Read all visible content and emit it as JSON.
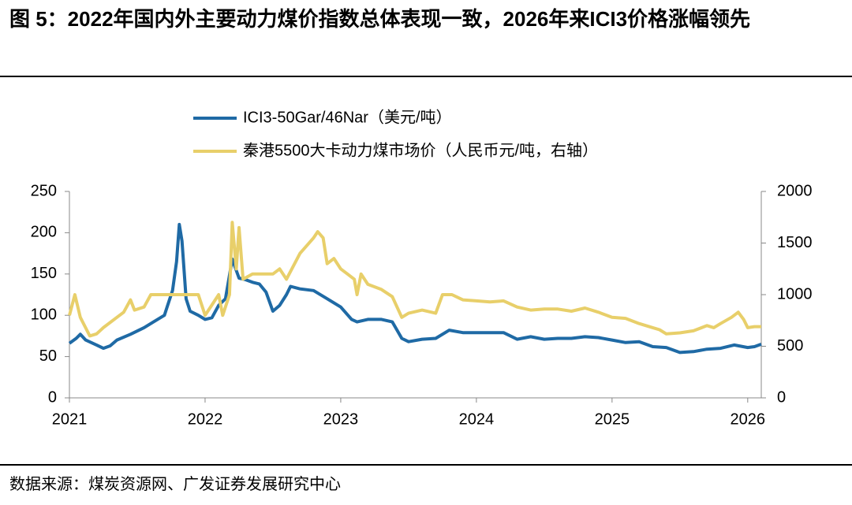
{
  "chart_data": {
    "type": "line",
    "title": "图 5：2022年国内外主要动力煤价指数总体表现一致，2026年来ICI3价格涨幅领先",
    "source": "数据来源：煤炭资源网、广发证券发展研究中心",
    "xlim": [
      2021,
      2026.1
    ],
    "xticks": [
      2021,
      2022,
      2023,
      2024,
      2025,
      2026
    ],
    "ylim": [
      0,
      250
    ],
    "yticks": [
      0,
      50,
      100,
      150,
      200,
      250
    ],
    "y2lim": [
      0,
      2000
    ],
    "y2ticks": [
      0,
      500,
      1000,
      1500,
      2000
    ],
    "series": [
      {
        "name": "ICI3-50Gar/46Nar（美元/吨）",
        "color": "#1f6aa5",
        "x": [
          2021.0,
          2021.05,
          2021.08,
          2021.12,
          2021.2,
          2021.25,
          2021.3,
          2021.35,
          2021.45,
          2021.55,
          2021.62,
          2021.7,
          2021.72,
          2021.76,
          2021.79,
          2021.81,
          2021.83,
          2021.86,
          2021.89,
          2021.95,
          2022.0,
          2022.05,
          2022.1,
          2022.15,
          2022.2,
          2022.25,
          2022.3,
          2022.35,
          2022.4,
          2022.45,
          2022.5,
          2022.55,
          2022.6,
          2022.63,
          2022.7,
          2022.8,
          2022.9,
          2023.0,
          2023.08,
          2023.12,
          2023.2,
          2023.3,
          2023.38,
          2023.45,
          2023.5,
          2023.6,
          2023.7,
          2023.8,
          2023.9,
          2024.0,
          2024.1,
          2024.2,
          2024.3,
          2024.4,
          2024.5,
          2024.6,
          2024.7,
          2024.8,
          2024.9,
          2025.0,
          2025.1,
          2025.2,
          2025.3,
          2025.4,
          2025.5,
          2025.6,
          2025.7,
          2025.8,
          2025.9,
          2026.0,
          2026.05,
          2026.1
        ],
        "values": [
          66,
          72,
          77,
          70,
          64,
          60,
          63,
          70,
          77,
          85,
          92,
          100,
          110,
          130,
          165,
          210,
          190,
          120,
          105,
          100,
          95,
          97,
          112,
          120,
          168,
          145,
          143,
          140,
          138,
          128,
          105,
          112,
          125,
          135,
          132,
          130,
          120,
          110,
          95,
          92,
          95,
          95,
          92,
          72,
          68,
          71,
          72,
          82,
          79,
          79,
          79,
          79,
          71,
          74,
          71,
          72,
          72,
          74,
          73,
          70,
          67,
          68,
          62,
          61,
          55,
          56,
          59,
          60,
          64,
          61,
          62,
          65
        ]
      },
      {
        "name": "秦港5500大卡动力煤市场价（人民币元/吨，右轴）",
        "color": "#e8cf6a",
        "axis": "y2",
        "x": [
          2021.0,
          2021.04,
          2021.08,
          2021.15,
          2021.2,
          2021.25,
          2021.35,
          2021.4,
          2021.45,
          2021.48,
          2021.55,
          2021.6,
          2021.8,
          2021.95,
          2022.0,
          2022.05,
          2022.1,
          2022.13,
          2022.18,
          2022.2,
          2022.23,
          2022.25,
          2022.28,
          2022.35,
          2022.5,
          2022.55,
          2022.6,
          2022.7,
          2022.8,
          2022.83,
          2022.87,
          2022.9,
          2022.95,
          2023.0,
          2023.05,
          2023.1,
          2023.12,
          2023.15,
          2023.2,
          2023.3,
          2023.38,
          2023.45,
          2023.5,
          2023.6,
          2023.7,
          2023.75,
          2023.82,
          2023.9,
          2024.0,
          2024.1,
          2024.2,
          2024.3,
          2024.4,
          2024.5,
          2024.6,
          2024.7,
          2024.8,
          2024.9,
          2025.0,
          2025.1,
          2025.2,
          2025.3,
          2025.35,
          2025.4,
          2025.5,
          2025.6,
          2025.7,
          2025.75,
          2025.8,
          2025.88,
          2025.93,
          2025.97,
          2026.0,
          2026.05,
          2026.1
        ],
        "values": [
          800,
          1000,
          780,
          600,
          620,
          680,
          780,
          830,
          950,
          850,
          880,
          1000,
          1000,
          1000,
          800,
          900,
          1000,
          800,
          1000,
          1700,
          1250,
          1650,
          1150,
          1200,
          1200,
          1250,
          1150,
          1400,
          1550,
          1610,
          1550,
          1300,
          1350,
          1250,
          1200,
          1150,
          1000,
          1200,
          1100,
          1050,
          980,
          780,
          820,
          850,
          820,
          1000,
          1000,
          950,
          940,
          930,
          940,
          880,
          850,
          860,
          860,
          840,
          870,
          830,
          780,
          770,
          720,
          680,
          660,
          620,
          630,
          650,
          700,
          680,
          720,
          780,
          830,
          760,
          680,
          690,
          690
        ]
      }
    ]
  }
}
